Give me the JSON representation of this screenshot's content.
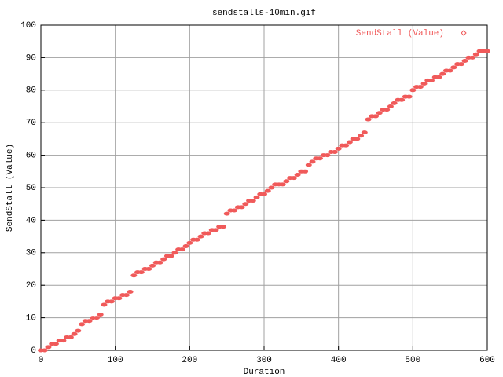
{
  "chart_data": {
    "type": "scatter",
    "title": "sendstalls-10min.gif",
    "x_label": "Duration",
    "y_label": "SendStall (Value)",
    "legend": "top-right",
    "grid": true,
    "xlim": [
      0,
      600
    ],
    "ylim": [
      0,
      100
    ],
    "xticks": [
      0,
      100,
      200,
      300,
      400,
      500,
      600
    ],
    "yticks": [
      0,
      10,
      20,
      30,
      40,
      50,
      60,
      70,
      80,
      90,
      100
    ],
    "series": [
      {
        "name": "SendStall (Value)",
        "color": "#f05a5a",
        "x": [
          0,
          5,
          10,
          15,
          20,
          25,
          30,
          35,
          40,
          45,
          50,
          55,
          60,
          65,
          70,
          75,
          80,
          85,
          90,
          95,
          100,
          105,
          110,
          115,
          120,
          125,
          130,
          135,
          140,
          145,
          150,
          155,
          160,
          165,
          170,
          175,
          180,
          185,
          190,
          195,
          200,
          205,
          210,
          215,
          220,
          225,
          230,
          235,
          240,
          245,
          250,
          255,
          260,
          265,
          270,
          275,
          280,
          285,
          290,
          295,
          300,
          305,
          310,
          315,
          320,
          325,
          330,
          335,
          340,
          345,
          350,
          355,
          360,
          365,
          370,
          375,
          380,
          385,
          390,
          395,
          400,
          405,
          410,
          415,
          420,
          425,
          430,
          435,
          440,
          445,
          450,
          455,
          460,
          465,
          470,
          475,
          480,
          485,
          490,
          495,
          500,
          505,
          510,
          515,
          520,
          525,
          530,
          535,
          540,
          545,
          550,
          555,
          560,
          565,
          570,
          575,
          580,
          585,
          590,
          595,
          600
        ],
        "values": [
          0,
          0,
          1,
          2,
          2,
          3,
          3,
          4,
          4,
          5,
          6,
          8,
          9,
          9,
          10,
          10,
          11,
          14,
          15,
          15,
          16,
          16,
          17,
          17,
          18,
          23,
          24,
          24,
          25,
          25,
          26,
          27,
          27,
          28,
          29,
          29,
          30,
          31,
          31,
          32,
          33,
          34,
          34,
          35,
          36,
          36,
          37,
          37,
          38,
          38,
          42,
          43,
          43,
          44,
          44,
          45,
          46,
          46,
          47,
          48,
          48,
          49,
          50,
          51,
          51,
          51,
          52,
          53,
          53,
          54,
          55,
          55,
          57,
          58,
          59,
          59,
          60,
          60,
          61,
          61,
          62,
          63,
          63,
          64,
          65,
          65,
          66,
          67,
          71,
          72,
          72,
          73,
          74,
          74,
          75,
          76,
          77,
          77,
          78,
          78,
          80,
          81,
          81,
          82,
          83,
          83,
          84,
          84,
          85,
          86,
          86,
          87,
          88,
          88,
          89,
          90,
          90,
          91,
          92,
          92,
          92
        ]
      }
    ]
  }
}
